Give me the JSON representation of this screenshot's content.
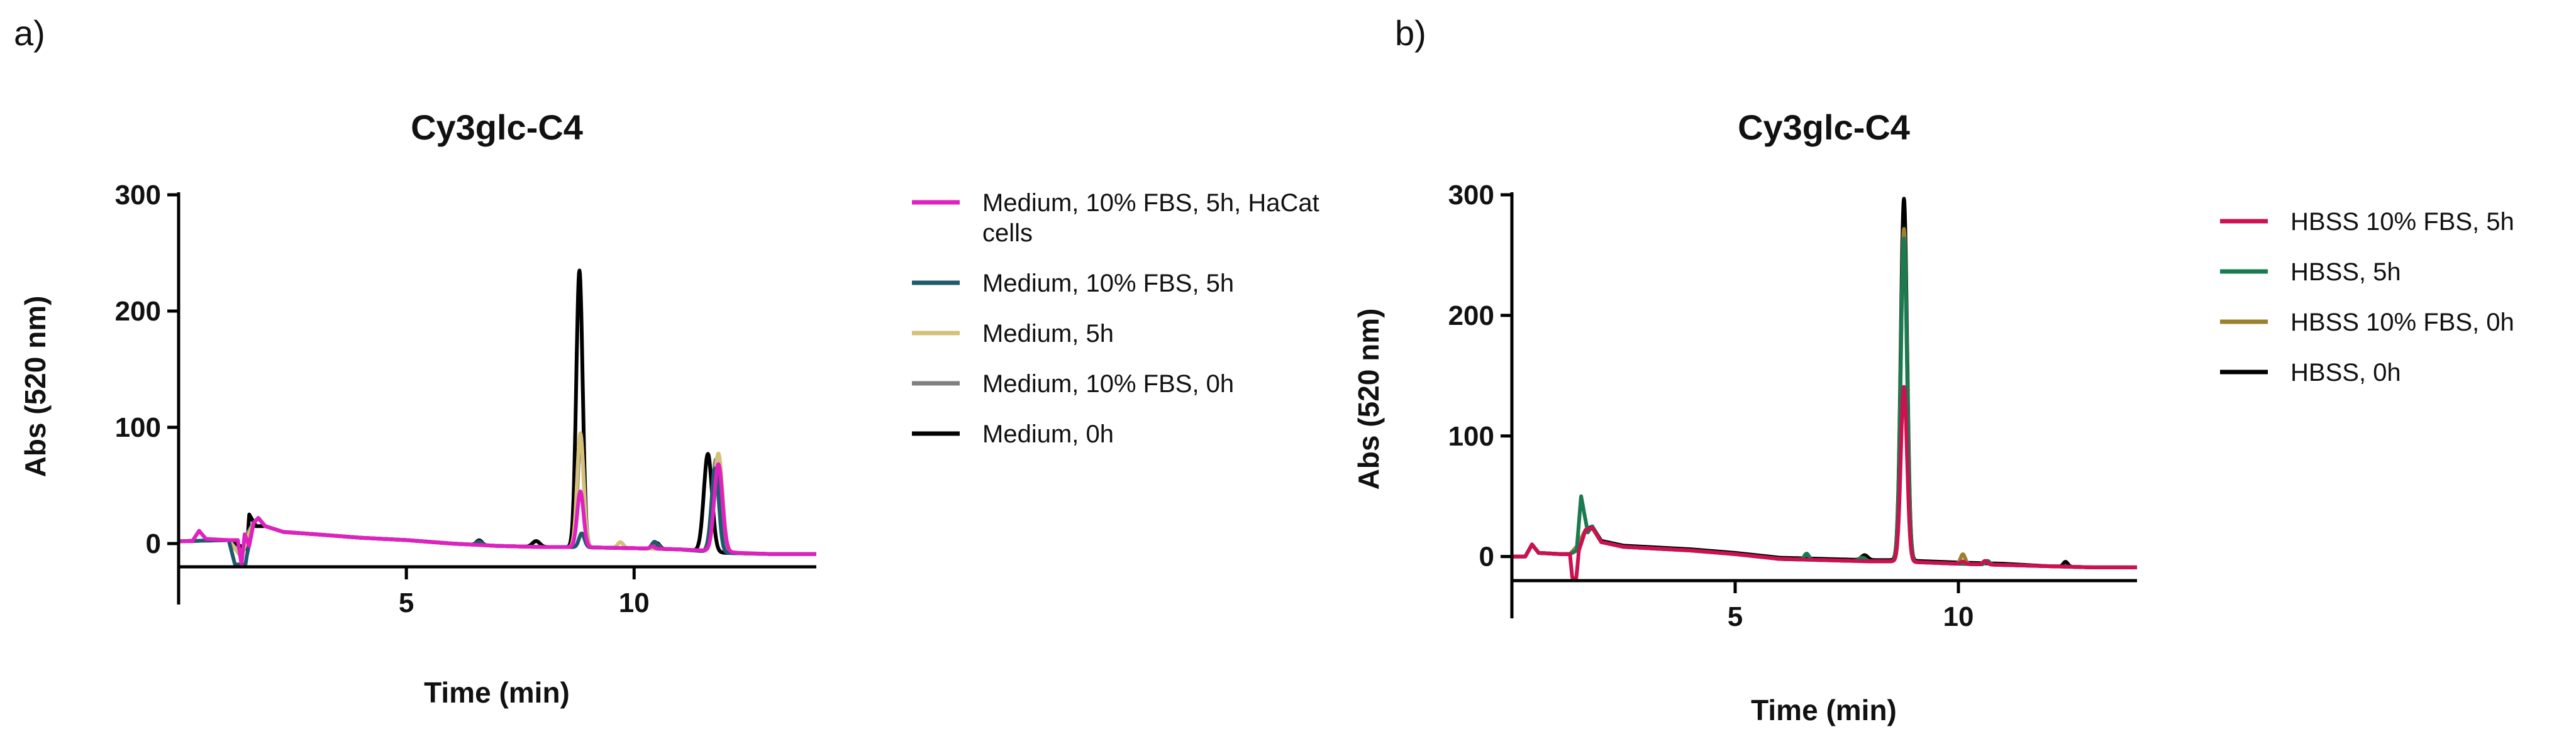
{
  "chart_data": [
    {
      "panel": "a)",
      "type": "line",
      "title": "Cy3glc-C4",
      "xlabel": "Time (min)",
      "ylabel": "Abs (520 nm)",
      "xlim": [
        0,
        14
      ],
      "ylim": [
        -20,
        300
      ],
      "xticks": [
        5,
        10
      ],
      "yticks": [
        0,
        100,
        200,
        300
      ],
      "legend_position": "right",
      "series": [
        {
          "name": "Medium, 10% FBS, 5h, HaCat cells",
          "color": "#e020c0",
          "baseline": [
            [
              0,
              2
            ],
            [
              0.3,
              2
            ],
            [
              0.45,
              11
            ],
            [
              0.6,
              4
            ],
            [
              1.1,
              3
            ],
            [
              1.3,
              3
            ],
            [
              1.38,
              -18
            ],
            [
              1.45,
              8
            ],
            [
              1.55,
              -2
            ],
            [
              1.65,
              18
            ],
            [
              1.75,
              22
            ],
            [
              1.9,
              15
            ],
            [
              2.3,
              10
            ],
            [
              3,
              8
            ],
            [
              4,
              5
            ],
            [
              5,
              3
            ],
            [
              6,
              0
            ],
            [
              7,
              -2
            ],
            [
              8,
              -3
            ],
            [
              8.6,
              -3
            ],
            [
              10,
              -4
            ],
            [
              11,
              -5
            ],
            [
              11.6,
              -6
            ],
            [
              12.3,
              -8
            ],
            [
              13,
              -9
            ],
            [
              14,
              -9
            ]
          ],
          "peaks": [
            [
              8.82,
              0.07,
              48
            ],
            [
              11.85,
              0.09,
              75
            ],
            [
              10.4,
              0.05,
              2
            ]
          ]
        },
        {
          "name": "Medium, 10% FBS, 5h",
          "color": "#1e5a6e",
          "baseline": [
            [
              0,
              2
            ],
            [
              1.1,
              3
            ],
            [
              1.38,
              -40
            ],
            [
              1.5,
              -10
            ],
            [
              1.65,
              18
            ],
            [
              1.75,
              22
            ],
            [
              1.9,
              15
            ],
            [
              2.3,
              10
            ],
            [
              3,
              8
            ],
            [
              4,
              5
            ],
            [
              5,
              3
            ],
            [
              6,
              0
            ],
            [
              7,
              -2
            ],
            [
              8,
              -3
            ],
            [
              8.6,
              -3
            ],
            [
              10,
              -4
            ],
            [
              11,
              -5
            ],
            [
              12,
              -8
            ],
            [
              13,
              -9
            ],
            [
              14,
              -9
            ]
          ],
          "peaks": [
            [
              8.85,
              0.06,
              12
            ],
            [
              10.45,
              0.06,
              6
            ],
            [
              11.78,
              0.08,
              72
            ],
            [
              6.6,
              0.06,
              3
            ]
          ]
        },
        {
          "name": "Medium, 5h",
          "color": "#d4c078",
          "baseline": [
            [
              0,
              2
            ],
            [
              1.1,
              3
            ],
            [
              1.38,
              -12
            ],
            [
              1.5,
              4
            ],
            [
              1.65,
              18
            ],
            [
              1.75,
              22
            ],
            [
              1.9,
              15
            ],
            [
              2.3,
              10
            ],
            [
              3,
              8
            ],
            [
              4,
              5
            ],
            [
              5,
              3
            ],
            [
              6,
              0
            ],
            [
              7,
              -2
            ],
            [
              8,
              -3
            ],
            [
              8.6,
              -3
            ],
            [
              10,
              -4
            ],
            [
              11,
              -5
            ],
            [
              12,
              -8
            ],
            [
              13,
              -9
            ],
            [
              14,
              -9
            ]
          ],
          "peaks": [
            [
              8.82,
              0.07,
              98
            ],
            [
              9.7,
              0.06,
              5
            ],
            [
              11.85,
              0.09,
              85
            ]
          ]
        },
        {
          "name": "Medium, 10% FBS, 0h",
          "color": "#808080",
          "baseline": [
            [
              0,
              2
            ],
            [
              1.1,
              3
            ],
            [
              1.38,
              -10
            ],
            [
              1.5,
              8
            ],
            [
              1.65,
              18
            ],
            [
              1.75,
              22
            ],
            [
              1.9,
              15
            ],
            [
              2.3,
              10
            ],
            [
              3,
              8
            ],
            [
              4,
              5
            ],
            [
              5,
              3
            ],
            [
              6,
              0
            ],
            [
              7,
              -2
            ],
            [
              8,
              -3
            ],
            [
              8.6,
              -3
            ],
            [
              10,
              -4
            ],
            [
              11,
              -5
            ],
            [
              12,
              -8
            ],
            [
              13,
              -9
            ],
            [
              14,
              -9
            ]
          ],
          "peaks": [
            [
              8.83,
              0.07,
              92
            ],
            [
              11.8,
              0.09,
              80
            ],
            [
              10.5,
              0.05,
              4
            ]
          ]
        },
        {
          "name": "Medium, 0h",
          "color": "#000000",
          "baseline": [
            [
              0,
              2
            ],
            [
              1.1,
              3
            ],
            [
              1.5,
              -5
            ],
            [
              1.55,
              25
            ],
            [
              1.7,
              15
            ],
            [
              1.9,
              15
            ],
            [
              2.3,
              10
            ],
            [
              3,
              8
            ],
            [
              4,
              5
            ],
            [
              5,
              3
            ],
            [
              6,
              0
            ],
            [
              7,
              -2
            ],
            [
              8,
              -3
            ],
            [
              8.6,
              -3
            ],
            [
              10,
              -4
            ],
            [
              11,
              -5
            ],
            [
              12,
              -8
            ],
            [
              13,
              -9
            ],
            [
              14,
              -9
            ]
          ],
          "peaks": [
            [
              8.8,
              0.07,
              238
            ],
            [
              11.62,
              0.09,
              84
            ],
            [
              6.6,
              0.06,
              4
            ],
            [
              7.85,
              0.08,
              5
            ],
            [
              10.5,
              0.06,
              5
            ]
          ]
        }
      ]
    },
    {
      "panel": "b)",
      "type": "line",
      "title": "Cy3glc-C4",
      "xlabel": "Time (min)",
      "ylabel": "Abs (520 nm)",
      "xlim": [
        0,
        14
      ],
      "ylim": [
        -20,
        300
      ],
      "xticks": [
        5,
        10
      ],
      "yticks": [
        0,
        100,
        200,
        300
      ],
      "legend_position": "right",
      "series": [
        {
          "name": "HBSS 10% FBS, 5h",
          "color": "#cc1050",
          "baseline": [
            [
              0,
              0
            ],
            [
              0.3,
              0
            ],
            [
              0.45,
              10
            ],
            [
              0.6,
              3
            ],
            [
              1.1,
              2
            ],
            [
              1.3,
              2
            ],
            [
              1.4,
              -35
            ],
            [
              1.5,
              5
            ],
            [
              1.65,
              22
            ],
            [
              1.8,
              24
            ],
            [
              2,
              12
            ],
            [
              2.5,
              8
            ],
            [
              3,
              7
            ],
            [
              4,
              5
            ],
            [
              5,
              2
            ],
            [
              6,
              -2
            ],
            [
              7,
              -3
            ],
            [
              8,
              -4
            ],
            [
              8.6,
              -4
            ],
            [
              10,
              -6
            ],
            [
              11,
              -7
            ],
            [
              12,
              -8
            ],
            [
              13,
              -9
            ],
            [
              14,
              -9
            ]
          ],
          "peaks": [
            [
              8.78,
              0.07,
              145
            ],
            [
              10.1,
              0.05,
              2
            ],
            [
              10.6,
              0.05,
              3
            ]
          ]
        },
        {
          "name": "HBSS, 5h",
          "color": "#1a7a50",
          "baseline": [
            [
              0,
              0
            ],
            [
              0.3,
              0
            ],
            [
              0.45,
              10
            ],
            [
              0.6,
              3
            ],
            [
              1.1,
              2
            ],
            [
              1.3,
              2
            ],
            [
              1.45,
              5
            ],
            [
              1.55,
              50
            ],
            [
              1.7,
              20
            ],
            [
              1.8,
              25
            ],
            [
              2,
              12
            ],
            [
              2.5,
              8
            ],
            [
              3,
              7
            ],
            [
              4,
              5
            ],
            [
              5,
              2
            ],
            [
              6,
              -2
            ],
            [
              7,
              -3
            ],
            [
              8,
              -4
            ],
            [
              8.6,
              -4
            ],
            [
              10,
              -6
            ],
            [
              11,
              -7
            ],
            [
              12,
              -8
            ],
            [
              13,
              -9
            ],
            [
              14,
              -9
            ]
          ],
          "peaks": [
            [
              8.78,
              0.07,
              268
            ],
            [
              6.6,
              0.05,
              5
            ],
            [
              7.85,
              0.07,
              3
            ],
            [
              10.65,
              0.05,
              3
            ]
          ]
        },
        {
          "name": "HBSS 10% FBS, 0h",
          "color": "#9a8030",
          "baseline": [
            [
              0,
              0
            ],
            [
              0.3,
              0
            ],
            [
              0.45,
              10
            ],
            [
              0.6,
              3
            ],
            [
              1.1,
              2
            ],
            [
              1.3,
              2
            ],
            [
              1.45,
              8
            ],
            [
              1.65,
              22
            ],
            [
              1.8,
              24
            ],
            [
              2,
              12
            ],
            [
              2.5,
              8
            ],
            [
              3,
              7
            ],
            [
              4,
              5
            ],
            [
              5,
              2
            ],
            [
              6,
              -2
            ],
            [
              7,
              -3
            ],
            [
              8,
              -4
            ],
            [
              8.6,
              -4
            ],
            [
              10,
              -6
            ],
            [
              11,
              -7
            ],
            [
              12,
              -8
            ],
            [
              13,
              -9
            ],
            [
              14,
              -9
            ]
          ],
          "peaks": [
            [
              8.78,
              0.07,
              276
            ],
            [
              10.1,
              0.05,
              8
            ],
            [
              10.65,
              0.05,
              3
            ]
          ]
        },
        {
          "name": "HBSS, 0h",
          "color": "#000000",
          "baseline": [
            [
              0,
              0
            ],
            [
              0.3,
              0
            ],
            [
              0.45,
              10
            ],
            [
              0.6,
              3
            ],
            [
              1.1,
              2
            ],
            [
              1.3,
              2
            ],
            [
              1.45,
              8
            ],
            [
              1.65,
              22
            ],
            [
              1.8,
              25
            ],
            [
              2,
              13
            ],
            [
              2.5,
              9
            ],
            [
              3,
              8
            ],
            [
              4,
              6
            ],
            [
              5,
              3
            ],
            [
              6,
              -1
            ],
            [
              7,
              -2
            ],
            [
              8,
              -3
            ],
            [
              8.6,
              -3
            ],
            [
              10,
              -5
            ],
            [
              11,
              -6
            ],
            [
              12,
              -8
            ],
            [
              13,
              -9
            ],
            [
              14,
              -9
            ]
          ],
          "peaks": [
            [
              8.78,
              0.07,
              300
            ],
            [
              7.9,
              0.07,
              4
            ],
            [
              12.4,
              0.05,
              4
            ]
          ]
        }
      ]
    }
  ]
}
